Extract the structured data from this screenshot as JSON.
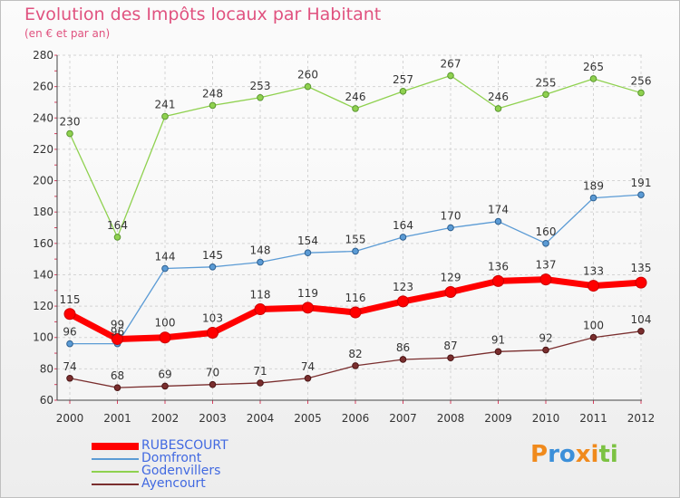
{
  "header": {
    "title": "Evolution des Impôts locaux par Habitant",
    "subtitle": "(en € et par an)"
  },
  "logo": {
    "text": "Proxiti",
    "letters": [
      "P",
      "r",
      "o",
      "x",
      "i",
      "t",
      "i"
    ],
    "colors": [
      "#f08a1c",
      "#3b8fd9",
      "#3b8fd9",
      "#f08a1c",
      "#f08a1c",
      "#7cc242",
      "#7cc242"
    ]
  },
  "chart_data": {
    "type": "line",
    "title": "Evolution des Impôts locaux par Habitant",
    "subtitle": "(en € et par an)",
    "xlabel": "",
    "ylabel": "",
    "x": [
      "2000",
      "2001",
      "2002",
      "2003",
      "2004",
      "2005",
      "2006",
      "2007",
      "2008",
      "2009",
      "2010",
      "2011",
      "2012"
    ],
    "ylim": [
      60,
      280
    ],
    "yticks": [
      60,
      80,
      100,
      120,
      140,
      160,
      180,
      200,
      220,
      240,
      260,
      280
    ],
    "grid": true,
    "legend_position": "bottom-left",
    "series": [
      {
        "name": "RUBESCOURT",
        "color": "#ff0000",
        "values": [
          115,
          99,
          100,
          103,
          118,
          119,
          116,
          123,
          129,
          136,
          137,
          133,
          135
        ]
      },
      {
        "name": "Domfront",
        "color": "#5b9bd5",
        "values": [
          96,
          96,
          144,
          145,
          148,
          154,
          155,
          164,
          170,
          174,
          160,
          189,
          191
        ]
      },
      {
        "name": "Godenvillers",
        "color": "#8fd14f",
        "values": [
          230,
          164,
          241,
          248,
          253,
          260,
          246,
          257,
          267,
          246,
          255,
          265,
          256
        ]
      },
      {
        "name": "Ayencourt",
        "color": "#7a2e2e",
        "values": [
          74,
          68,
          69,
          70,
          71,
          74,
          82,
          86,
          87,
          91,
          92,
          100,
          104
        ]
      }
    ],
    "data_labels": [
      [
        "115",
        "99",
        "100",
        "103",
        "118",
        "119",
        "116",
        "123",
        "129",
        "136",
        "137",
        "133",
        "135"
      ],
      [
        "96",
        "96",
        "144",
        "145",
        "148",
        "154",
        "155",
        "164",
        "170",
        "174",
        "160",
        "189",
        "191"
      ],
      [
        "230",
        "164",
        "241",
        "248",
        "253",
        "260",
        "246",
        "257",
        "267",
        "246",
        "255",
        "265",
        "256"
      ],
      [
        "74",
        "68",
        "69",
        "70",
        "71",
        "74",
        "82",
        "86",
        "87",
        "91",
        "92",
        "100",
        "104"
      ]
    ]
  }
}
